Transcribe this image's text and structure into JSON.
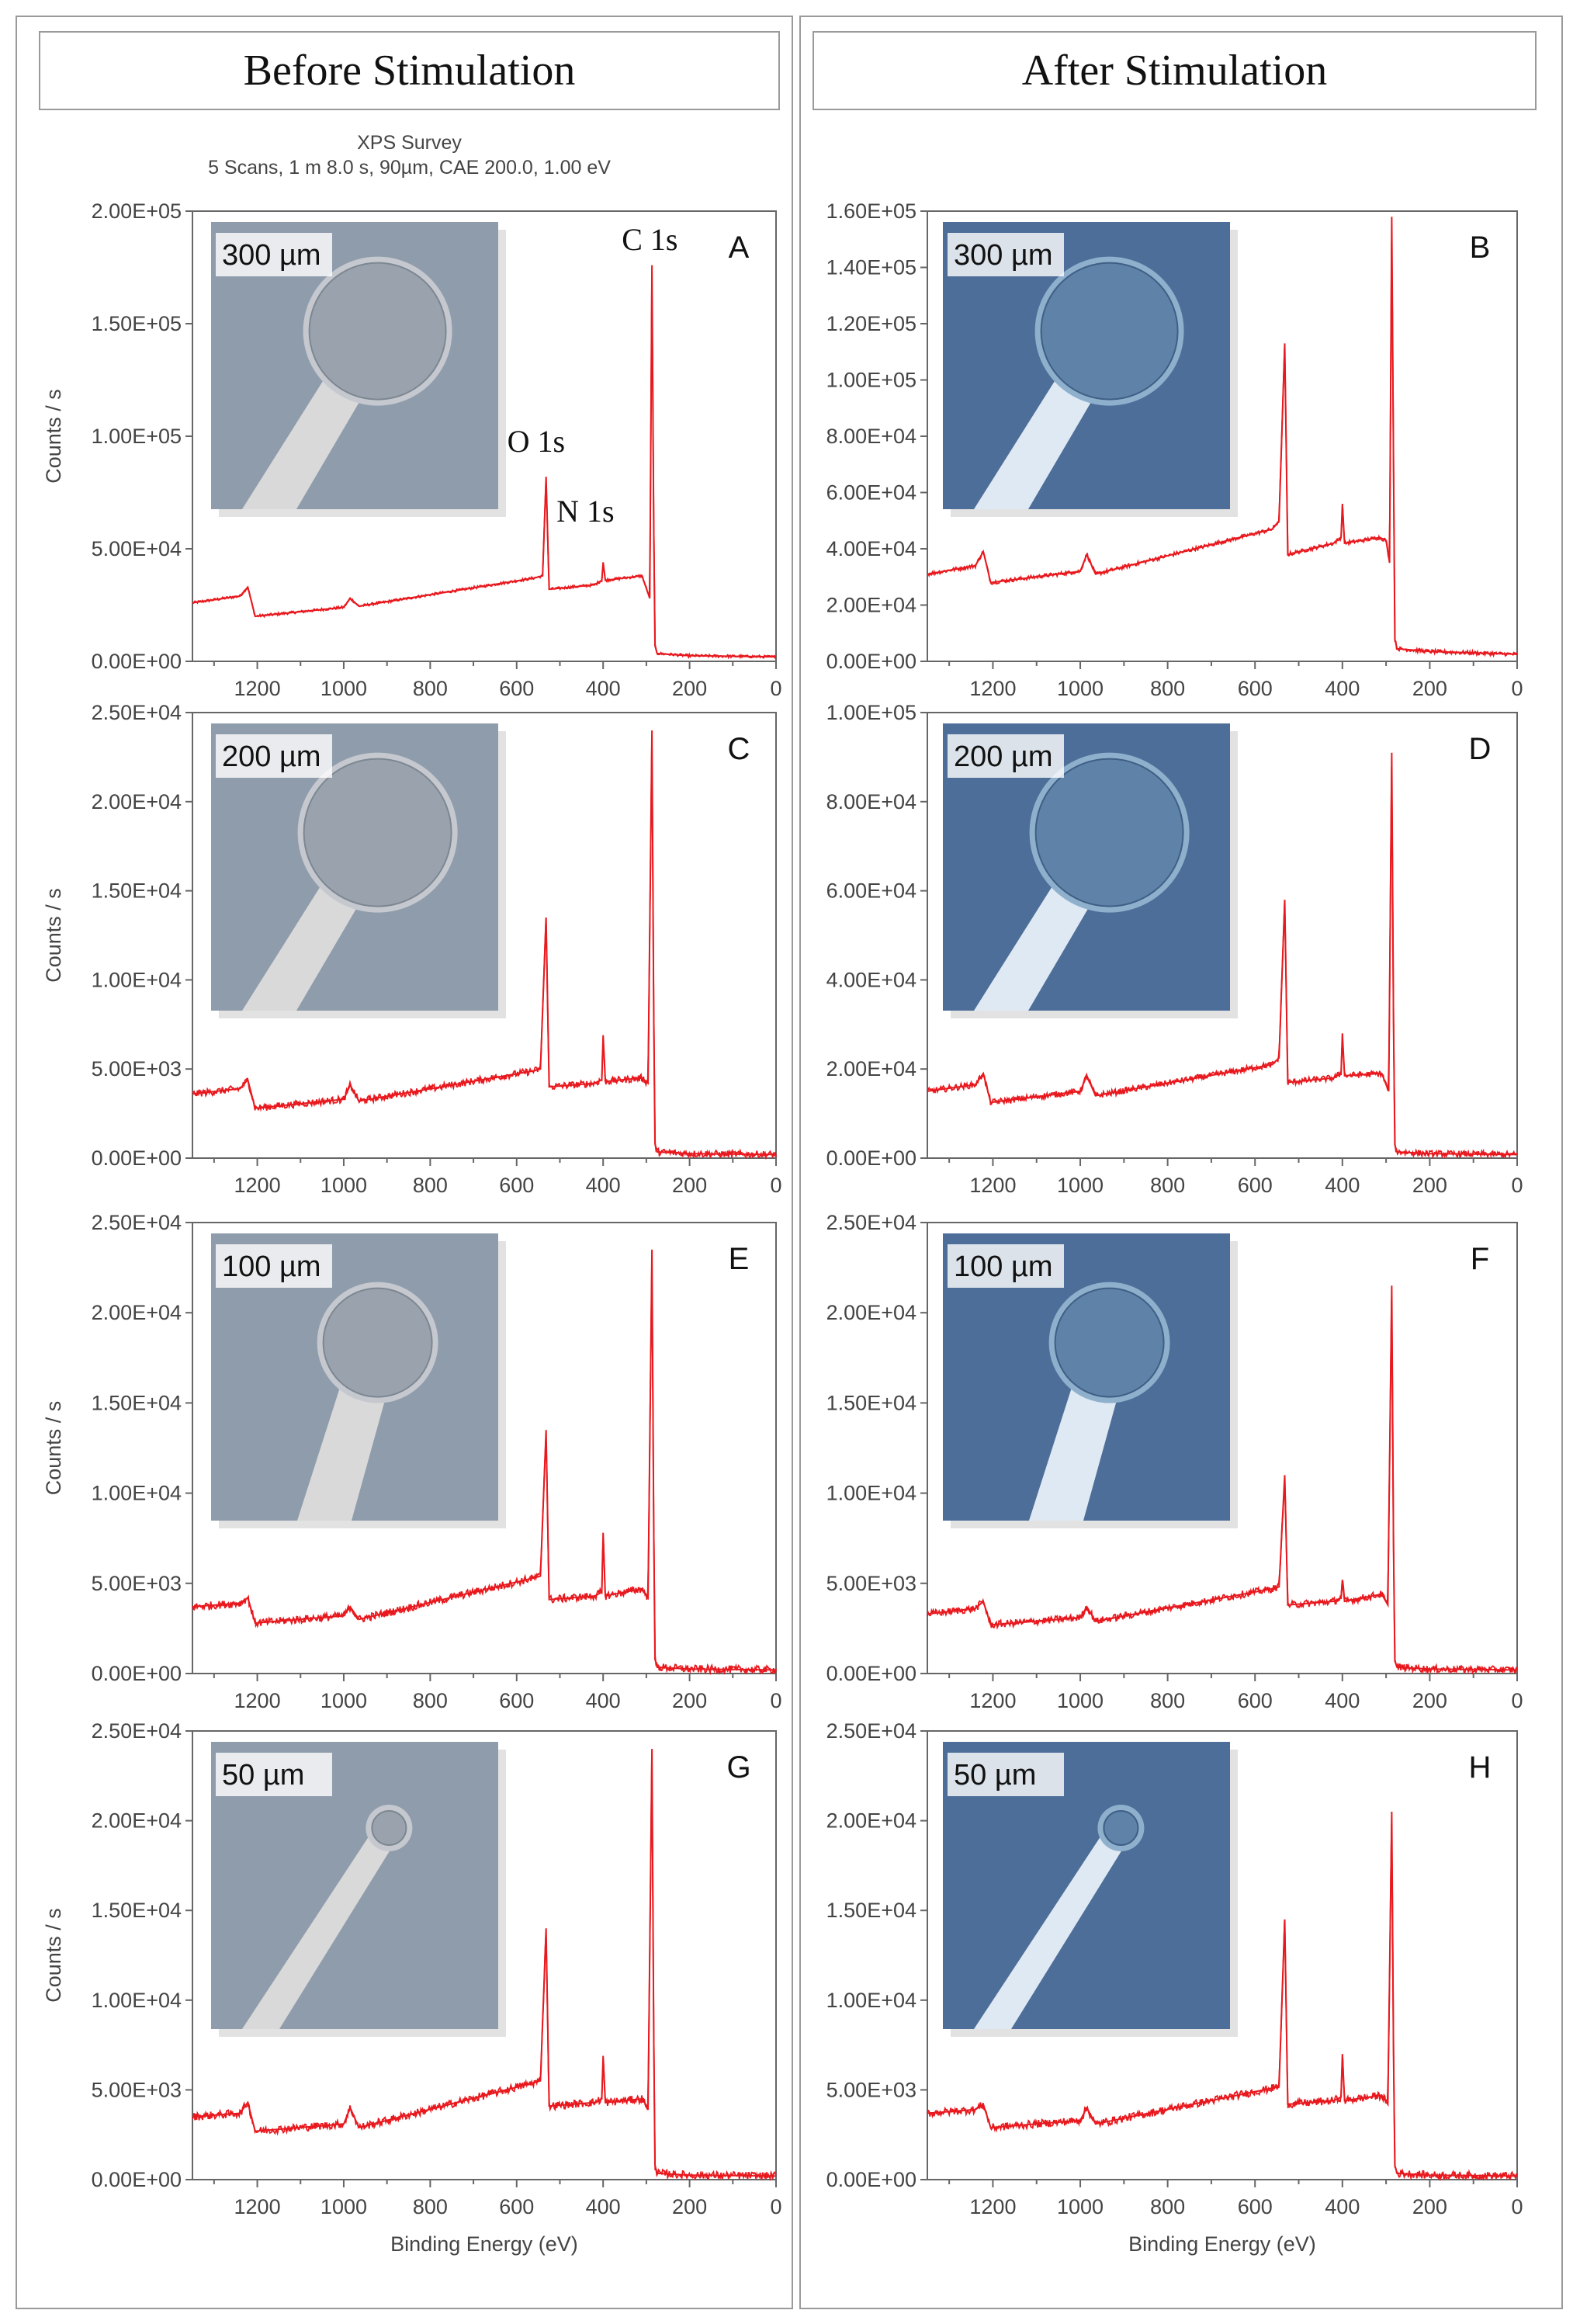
{
  "columns": [
    {
      "title": "Before Stimulation"
    },
    {
      "title": "After Stimulation"
    }
  ],
  "survey_header": {
    "line1": "XPS Survey",
    "line2": "5 Scans,  1 m 8.0 s,  90µm,  CAE 200.0,  1.00 eV"
  },
  "colors": {
    "spectrum": "#e8191e",
    "frame": "#9a9a9a",
    "inset_before": "#8f9cac",
    "inset_after": "#4d6e98"
  },
  "chart_data": [
    {
      "type": "line",
      "panel": "A",
      "column": 0,
      "row": 0,
      "xlabel": "",
      "ylabel": "Counts / s",
      "xlim": [
        1350,
        0
      ],
      "ylim": [
        0,
        200000
      ],
      "x_ticks": [
        "1200",
        "1000",
        "800",
        "600",
        "400",
        "200",
        "0"
      ],
      "y_ticks": [
        "0.00E+00",
        "5.00E+04",
        "1.00E+05",
        "1.50E+05",
        "2.00E+05"
      ],
      "inset_label": "300 µm",
      "peak_labels": [
        {
          "text": "C 1s",
          "x": 285
        },
        {
          "text": "O 1s",
          "x": 532
        },
        {
          "text": "N 1s",
          "x": 400
        }
      ],
      "spectrum": {
        "baseline": [
          [
            1350,
            26000
          ],
          [
            1240,
            29000
          ],
          [
            1222,
            33000
          ],
          [
            1205,
            20000
          ],
          [
            1000,
            24000
          ],
          [
            985,
            28000
          ],
          [
            965,
            24500
          ],
          [
            560,
            37000
          ],
          [
            540,
            38000
          ],
          [
            532,
            82000
          ],
          [
            525,
            32000
          ],
          [
            420,
            34000
          ],
          [
            403,
            36000
          ],
          [
            400,
            44000
          ],
          [
            395,
            36000
          ],
          [
            310,
            38000
          ],
          [
            292,
            28000
          ],
          [
            287,
            176000
          ],
          [
            283,
            60000
          ],
          [
            280,
            7000
          ],
          [
            275,
            3500
          ],
          [
            200,
            2500
          ],
          [
            0,
            2000
          ]
        ],
        "noise": 600
      }
    },
    {
      "type": "line",
      "panel": "B",
      "column": 1,
      "row": 0,
      "xlabel": "",
      "ylabel": "",
      "xlim": [
        1350,
        0
      ],
      "ylim": [
        0,
        160000
      ],
      "x_ticks": [
        "1200",
        "1000",
        "800",
        "600",
        "400",
        "200",
        "0"
      ],
      "y_ticks": [
        "0.00E+00",
        "2.00E+04",
        "4.00E+04",
        "6.00E+04",
        "8.00E+04",
        "1.00E+05",
        "1.20E+05",
        "1.40E+05",
        "1.60E+05"
      ],
      "inset_label": "300 µm",
      "peak_labels": [],
      "spectrum": {
        "baseline": [
          [
            1350,
            31000
          ],
          [
            1240,
            34000
          ],
          [
            1222,
            39000
          ],
          [
            1205,
            28000
          ],
          [
            1000,
            32000
          ],
          [
            985,
            38000
          ],
          [
            965,
            31000
          ],
          [
            560,
            47000
          ],
          [
            545,
            50000
          ],
          [
            532,
            113000
          ],
          [
            525,
            38000
          ],
          [
            420,
            42000
          ],
          [
            403,
            44000
          ],
          [
            400,
            56000
          ],
          [
            395,
            42000
          ],
          [
            315,
            44000
          ],
          [
            300,
            43000
          ],
          [
            292,
            35000
          ],
          [
            287,
            158000
          ],
          [
            283,
            70000
          ],
          [
            280,
            8000
          ],
          [
            275,
            4500
          ],
          [
            200,
            3500
          ],
          [
            0,
            2500
          ]
        ],
        "noise": 700
      }
    },
    {
      "type": "line",
      "panel": "C",
      "column": 0,
      "row": 1,
      "xlabel": "",
      "ylabel": "Counts / s",
      "xlim": [
        1350,
        0
      ],
      "ylim": [
        0,
        25000
      ],
      "x_ticks": [
        "1200",
        "1000",
        "800",
        "600",
        "400",
        "200",
        "0"
      ],
      "y_ticks": [
        "0.00E+00",
        "5.00E+03",
        "1.00E+04",
        "1.50E+04",
        "2.00E+04",
        "2.50E+04"
      ],
      "inset_label": "200 µm",
      "peak_labels": [],
      "spectrum": {
        "baseline": [
          [
            1350,
            3600
          ],
          [
            1240,
            3900
          ],
          [
            1222,
            4400
          ],
          [
            1205,
            2800
          ],
          [
            1000,
            3300
          ],
          [
            985,
            4100
          ],
          [
            965,
            3200
          ],
          [
            560,
            4900
          ],
          [
            545,
            5000
          ],
          [
            532,
            13500
          ],
          [
            525,
            4000
          ],
          [
            420,
            4200
          ],
          [
            403,
            4400
          ],
          [
            400,
            6900
          ],
          [
            395,
            4300
          ],
          [
            310,
            4500
          ],
          [
            296,
            4200
          ],
          [
            287,
            24000
          ],
          [
            283,
            8000
          ],
          [
            280,
            800
          ],
          [
            275,
            350
          ],
          [
            200,
            250
          ],
          [
            0,
            200
          ]
        ],
        "noise": 200
      }
    },
    {
      "type": "line",
      "panel": "D",
      "column": 1,
      "row": 1,
      "xlabel": "",
      "ylabel": "",
      "xlim": [
        1350,
        0
      ],
      "ylim": [
        0,
        100000
      ],
      "x_ticks": [
        "1200",
        "1000",
        "800",
        "600",
        "400",
        "200",
        "0"
      ],
      "y_ticks": [
        "0.00E+00",
        "2.00E+04",
        "4.00E+04",
        "6.00E+04",
        "8.00E+04",
        "1.00E+05"
      ],
      "inset_label": "200 µm",
      "peak_labels": [],
      "spectrum": {
        "baseline": [
          [
            1350,
            15000
          ],
          [
            1240,
            16500
          ],
          [
            1222,
            19000
          ],
          [
            1205,
            12500
          ],
          [
            1000,
            15000
          ],
          [
            985,
            18500
          ],
          [
            965,
            14000
          ],
          [
            560,
            21000
          ],
          [
            545,
            22500
          ],
          [
            532,
            58000
          ],
          [
            525,
            17000
          ],
          [
            420,
            18000
          ],
          [
            403,
            19000
          ],
          [
            400,
            28000
          ],
          [
            395,
            18500
          ],
          [
            310,
            19000
          ],
          [
            294,
            15000
          ],
          [
            287,
            91000
          ],
          [
            283,
            30000
          ],
          [
            280,
            3000
          ],
          [
            275,
            1400
          ],
          [
            200,
            1000
          ],
          [
            0,
            800
          ]
        ],
        "noise": 700
      }
    },
    {
      "type": "line",
      "panel": "E",
      "column": 0,
      "row": 2,
      "xlabel": "",
      "ylabel": "Counts / s",
      "xlim": [
        1350,
        0
      ],
      "ylim": [
        0,
        25000
      ],
      "x_ticks": [
        "1200",
        "1000",
        "800",
        "600",
        "400",
        "200",
        "0"
      ],
      "y_ticks": [
        "0.00E+00",
        "5.00E+03",
        "1.00E+04",
        "1.50E+04",
        "2.00E+04",
        "2.50E+04"
      ],
      "inset_label": "100 µm",
      "peak_labels": [],
      "spectrum": {
        "baseline": [
          [
            1350,
            3700
          ],
          [
            1240,
            3900
          ],
          [
            1222,
            4200
          ],
          [
            1205,
            2800
          ],
          [
            1000,
            3200
          ],
          [
            985,
            3700
          ],
          [
            965,
            3000
          ],
          [
            560,
            5300
          ],
          [
            545,
            5400
          ],
          [
            532,
            13500
          ],
          [
            525,
            4100
          ],
          [
            420,
            4300
          ],
          [
            403,
            4500
          ],
          [
            400,
            7800
          ],
          [
            395,
            4300
          ],
          [
            310,
            4700
          ],
          [
            296,
            4200
          ],
          [
            287,
            23500
          ],
          [
            283,
            8000
          ],
          [
            280,
            800
          ],
          [
            275,
            350
          ],
          [
            200,
            250
          ],
          [
            0,
            200
          ]
        ],
        "noise": 220
      }
    },
    {
      "type": "line",
      "panel": "F",
      "column": 1,
      "row": 2,
      "xlabel": "",
      "ylabel": "",
      "xlim": [
        1350,
        0
      ],
      "ylim": [
        0,
        25000
      ],
      "x_ticks": [
        "1200",
        "1000",
        "800",
        "600",
        "400",
        "200",
        "0"
      ],
      "y_ticks": [
        "0.00E+00",
        "5.00E+03",
        "1.00E+04",
        "1.50E+04",
        "2.00E+04",
        "2.50E+04"
      ],
      "inset_label": "100 µm",
      "peak_labels": [],
      "spectrum": {
        "baseline": [
          [
            1350,
            3300
          ],
          [
            1240,
            3600
          ],
          [
            1222,
            4000
          ],
          [
            1205,
            2700
          ],
          [
            1000,
            3100
          ],
          [
            985,
            3700
          ],
          [
            965,
            2900
          ],
          [
            560,
            4700
          ],
          [
            545,
            4800
          ],
          [
            532,
            11000
          ],
          [
            525,
            3800
          ],
          [
            420,
            4000
          ],
          [
            403,
            4200
          ],
          [
            400,
            5200
          ],
          [
            395,
            4000
          ],
          [
            310,
            4400
          ],
          [
            296,
            3800
          ],
          [
            287,
            21500
          ],
          [
            283,
            7000
          ],
          [
            280,
            700
          ],
          [
            275,
            350
          ],
          [
            200,
            250
          ],
          [
            0,
            200
          ]
        ],
        "noise": 200
      }
    },
    {
      "type": "line",
      "panel": "G",
      "column": 0,
      "row": 3,
      "xlabel": "Binding Energy (eV)",
      "ylabel": "Counts / s",
      "xlim": [
        1350,
        0
      ],
      "ylim": [
        0,
        25000
      ],
      "x_ticks": [
        "1200",
        "1000",
        "800",
        "600",
        "400",
        "200",
        "0"
      ],
      "y_ticks": [
        "0.00E+00",
        "5.00E+03",
        "1.00E+04",
        "1.50E+04",
        "2.00E+04",
        "2.50E+04"
      ],
      "inset_label": "50 µm",
      "peak_labels": [],
      "spectrum": {
        "baseline": [
          [
            1350,
            3500
          ],
          [
            1240,
            3700
          ],
          [
            1222,
            4300
          ],
          [
            1205,
            2700
          ],
          [
            1000,
            3100
          ],
          [
            985,
            4000
          ],
          [
            965,
            2900
          ],
          [
            560,
            5400
          ],
          [
            545,
            5500
          ],
          [
            532,
            14000
          ],
          [
            525,
            4100
          ],
          [
            420,
            4300
          ],
          [
            403,
            4500
          ],
          [
            400,
            6900
          ],
          [
            395,
            4300
          ],
          [
            310,
            4500
          ],
          [
            296,
            4000
          ],
          [
            287,
            24000
          ],
          [
            283,
            8000
          ],
          [
            280,
            800
          ],
          [
            275,
            350
          ],
          [
            200,
            250
          ],
          [
            0,
            200
          ]
        ],
        "noise": 220
      }
    },
    {
      "type": "line",
      "panel": "H",
      "column": 1,
      "row": 3,
      "xlabel": "Binding Energy (eV)",
      "ylabel": "",
      "xlim": [
        1350,
        0
      ],
      "ylim": [
        0,
        25000
      ],
      "x_ticks": [
        "1200",
        "1000",
        "800",
        "600",
        "400",
        "200",
        "0"
      ],
      "y_ticks": [
        "0.00E+00",
        "5.00E+03",
        "1.00E+04",
        "1.50E+04",
        "2.00E+04",
        "2.50E+04"
      ],
      "inset_label": "50 µm",
      "peak_labels": [],
      "spectrum": {
        "baseline": [
          [
            1350,
            3700
          ],
          [
            1240,
            3900
          ],
          [
            1222,
            4200
          ],
          [
            1205,
            2900
          ],
          [
            1000,
            3300
          ],
          [
            985,
            4000
          ],
          [
            965,
            3100
          ],
          [
            560,
            5100
          ],
          [
            545,
            5200
          ],
          [
            532,
            14500
          ],
          [
            525,
            4200
          ],
          [
            420,
            4400
          ],
          [
            403,
            4600
          ],
          [
            400,
            7000
          ],
          [
            395,
            4400
          ],
          [
            310,
            4700
          ],
          [
            296,
            4200
          ],
          [
            287,
            20500
          ],
          [
            283,
            7000
          ],
          [
            280,
            800
          ],
          [
            275,
            350
          ],
          [
            200,
            250
          ],
          [
            0,
            200
          ]
        ],
        "noise": 220
      }
    }
  ]
}
